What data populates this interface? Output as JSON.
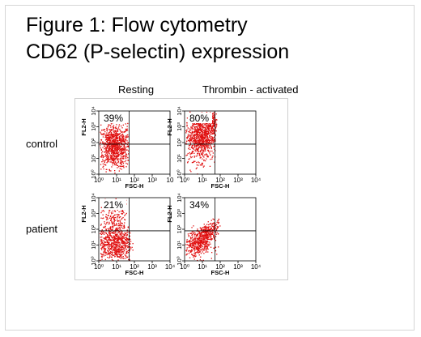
{
  "title_line1": "Figure 1: Flow cytometry",
  "title_line2": "CD62 (P-selectin) expression",
  "columns": [
    "Resting",
    "Thrombin - activated"
  ],
  "rows": [
    "control",
    "patient"
  ],
  "colors": {
    "dots": "#e01010",
    "axis": "#000000",
    "frame": "#cfcfcf"
  },
  "chart_data": [
    {
      "type": "scatter",
      "panel": "control / Resting",
      "quadrant_label": "39%",
      "xlabel": "FSC-H",
      "ylabel": "FL2-H",
      "x_ticks": [
        "10⁰",
        "10¹",
        "10²",
        "10³",
        "10"
      ],
      "y_ticks": [
        "10⁰",
        "10¹",
        "10²",
        "10³",
        "10⁴"
      ],
      "xlim": [
        0,
        4
      ],
      "ylim": [
        0,
        4
      ],
      "quadrant_gate": {
        "x": 1.7,
        "y": 1.9
      },
      "clusters": [
        {
          "cx": 0.85,
          "cy": 1.8,
          "sx": 0.45,
          "sy": 0.7,
          "n": 950,
          "xmin": 0.05,
          "xmax": 1.65
        }
      ]
    },
    {
      "type": "scatter",
      "panel": "control / Thrombin - activated",
      "quadrant_label": "80%",
      "xlabel": "FSC-H",
      "ylabel": "FL2-H",
      "x_ticks": [
        "10⁰",
        "10¹",
        "10²",
        "10³",
        "10⁴"
      ],
      "y_ticks": [
        "10⁰",
        "10¹",
        "10²",
        "10³",
        "10⁴"
      ],
      "xlim": [
        0,
        4
      ],
      "ylim": [
        0,
        4
      ],
      "quadrant_gate": {
        "x": 1.7,
        "y": 1.9
      },
      "clusters": [
        {
          "cx": 0.9,
          "cy": 2.4,
          "sx": 0.45,
          "sy": 0.75,
          "n": 950,
          "xmin": 0.05,
          "xmax": 1.7
        },
        {
          "cx": 1.5,
          "cy": 3.3,
          "sx": 0.2,
          "sy": 0.35,
          "n": 180,
          "xmin": 1.0,
          "xmax": 1.8
        }
      ]
    },
    {
      "type": "scatter",
      "panel": "patient / Resting",
      "quadrant_label": "21%",
      "xlabel": "FSC-H",
      "ylabel": "FL2-H",
      "x_ticks": [
        "10⁰",
        "10¹",
        "10²",
        "10³",
        "10⁴"
      ],
      "y_ticks": [
        "10⁰",
        "10¹",
        "10²",
        "10³",
        "10⁴"
      ],
      "xlim": [
        0,
        4
      ],
      "ylim": [
        0,
        4
      ],
      "quadrant_gate": {
        "x": 1.7,
        "y": 1.9
      },
      "clusters": [
        {
          "cx": 0.85,
          "cy": 1.1,
          "sx": 0.5,
          "sy": 0.6,
          "n": 700,
          "xmin": 0.05,
          "xmax": 1.9
        },
        {
          "cx": 0.9,
          "cy": 2.5,
          "sx": 0.45,
          "sy": 0.7,
          "n": 220,
          "xmin": 0.05,
          "xmax": 1.7
        }
      ]
    },
    {
      "type": "scatter",
      "panel": "patient / Thrombin - activated",
      "quadrant_label": "34%",
      "xlabel": "FSC-H",
      "ylabel": "FL2-H",
      "x_ticks": [
        "10⁰",
        "10¹",
        "10²",
        "10³",
        "10⁴"
      ],
      "y_ticks": [
        "10⁰",
        "10¹",
        "10²",
        "10³",
        "10⁴"
      ],
      "xlim": [
        0,
        4
      ],
      "ylim": [
        0,
        4
      ],
      "quadrant_gate": {
        "x": 1.7,
        "y": 1.9
      },
      "clusters": [
        {
          "cx": 0.7,
          "cy": 1.1,
          "sx": 0.45,
          "sy": 0.45,
          "n": 350,
          "xmin": 0.05,
          "xmax": 1.9
        },
        {
          "cx": 1.2,
          "cy": 1.7,
          "sx": 0.35,
          "sy": 0.3,
          "n": 350,
          "xmin": 0.3,
          "xmax": 2.0,
          "slope": 0.8
        }
      ]
    }
  ]
}
